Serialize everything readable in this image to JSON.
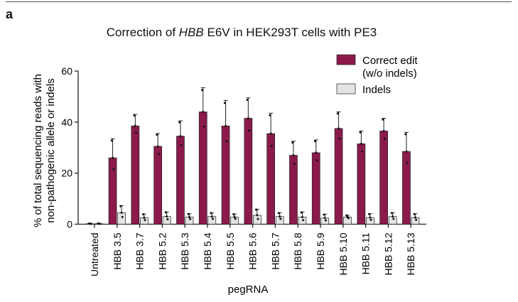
{
  "figure": {
    "panel_label": "a",
    "title_prefix": "Correction of ",
    "title_gene": "HBB",
    "title_suffix": " E6V in HEK293T cells with PE3"
  },
  "colors": {
    "correct_edit": "#8B1A4A",
    "indels": "#E3E3E3",
    "axis": "#222222"
  },
  "chart_data": {
    "type": "bar",
    "title": "Correction of HBB E6V in HEK293T cells with PE3",
    "xlabel": "pegRNA",
    "ylabel_line1": "% of total sequencing reads with",
    "ylabel_line2": "non-pathogenic allele or indels",
    "ylim": [
      0,
      60
    ],
    "yticks": [
      "0",
      "20",
      "40",
      "60"
    ],
    "categories": [
      "Untreated",
      "HBB 3.5",
      "HBB 3.7",
      "HBB 5.2",
      "HBB 5.3",
      "HBB 5.4",
      "HBB 5.5",
      "HBB 5.6",
      "HBB 5.7",
      "HBB 5.8",
      "HBB 5.9",
      "HBB 5.10",
      "HBB 5.11",
      "HBB 5.12",
      "HBB 5.13"
    ],
    "legend_position": "top-right",
    "series": [
      {
        "name": "Correct edit (w/o indels)",
        "legend_line1": "Correct edit",
        "legend_line2": "(w/o indels)",
        "values": [
          0.2,
          26,
          38.5,
          30.5,
          34.5,
          44,
          38.5,
          41.5,
          35.5,
          27,
          28,
          37.5,
          31.5,
          36.5,
          28.5
        ],
        "errors": [
          0.1,
          7.5,
          4.5,
          5,
          6,
          9.5,
          10,
          8,
          8,
          5.5,
          5,
          6.5,
          5,
          5,
          7.5
        ]
      },
      {
        "name": "Indels",
        "legend_line1": "Indels",
        "legend_line2": "",
        "values": [
          0.2,
          4.5,
          2.5,
          3,
          2.8,
          3,
          2.8,
          3.5,
          3,
          2.8,
          2.4,
          2.8,
          2.6,
          3,
          2.6
        ],
        "errors": [
          0.1,
          2.8,
          1.5,
          1.8,
          1.3,
          1.5,
          1.2,
          2.4,
          1.5,
          2,
          1.5,
          0.7,
          1.5,
          1.5,
          1.5
        ]
      }
    ]
  }
}
